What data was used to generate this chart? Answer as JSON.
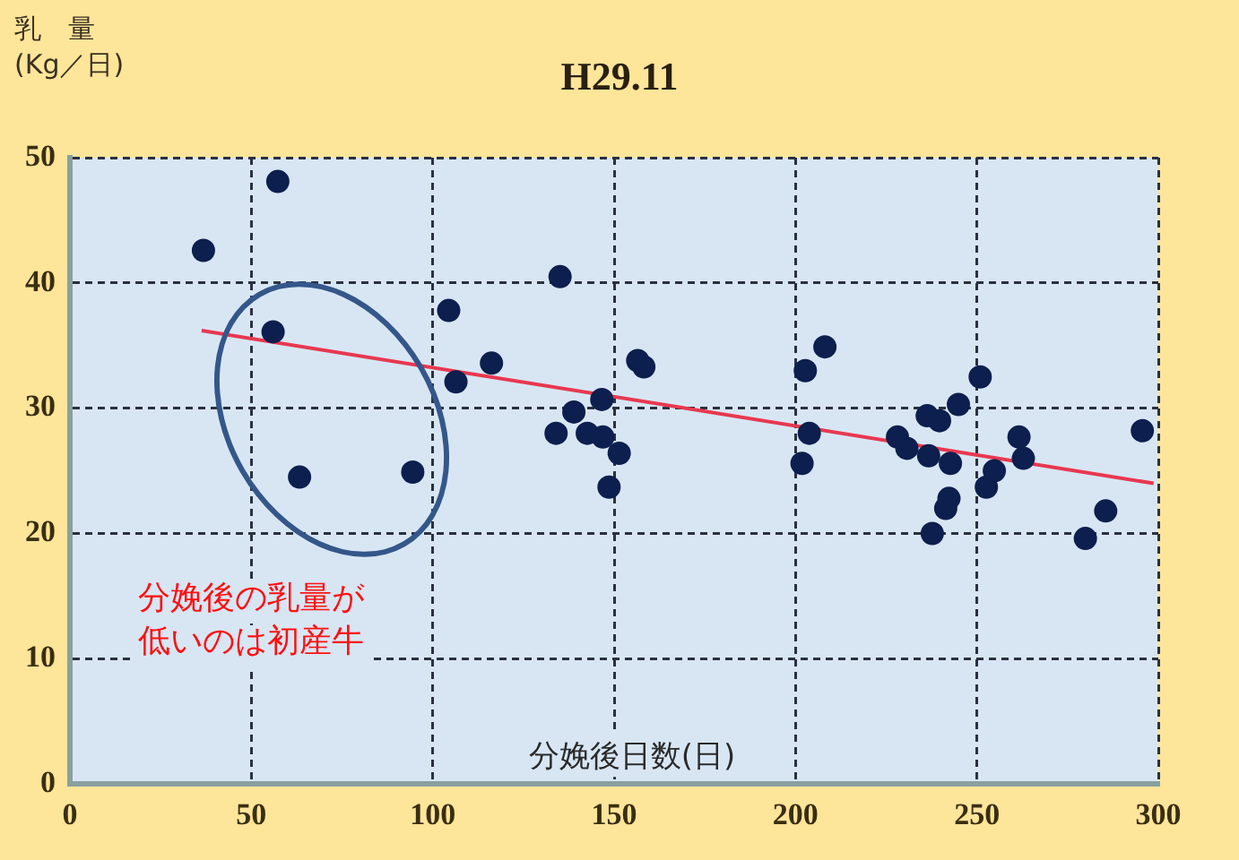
{
  "chart_data": {
    "type": "scatter",
    "title": "H29.11",
    "xlabel": "分娩後日数(日)",
    "ylabel": "乳　量\n(Kg／日)",
    "annotations": [
      "分娩後の乳量が低いのは初産牛"
    ],
    "xlim": [
      0,
      300
    ],
    "xticks": [
      0,
      50,
      100,
      150,
      200,
      250,
      300
    ],
    "ylim": [
      0,
      50
    ],
    "yticks": [
      0,
      10,
      20,
      30,
      40,
      50
    ],
    "grid": true,
    "marker": "circle",
    "series": [
      {
        "type": "scatter",
        "color": "#0d1f4f",
        "x": [
          36.8,
          57.3,
          56,
          63.3,
          94.5,
          104.4,
          106.4,
          116.2,
          135.1,
          134,
          138.9,
          142.6,
          146.6,
          146.9,
          151.4,
          148.6,
          156.5,
          158.2,
          202.7,
          208.1,
          203.8,
          201.8,
          228.1,
          230.7,
          236.3,
          239.7,
          244.9,
          236.7,
          242.7,
          250.9,
          242.3,
          241.4,
          237.7,
          252.6,
          254.8,
          261.6,
          262.8,
          279.9,
          285.5,
          295.6
        ],
        "values": [
          42.6,
          48.1,
          36.1,
          24.5,
          24.9,
          37.8,
          32.1,
          33.6,
          40.5,
          28.0,
          29.7,
          28.0,
          30.7,
          27.7,
          26.4,
          23.7,
          33.8,
          33.3,
          33.0,
          34.9,
          28.0,
          25.6,
          27.7,
          26.8,
          29.4,
          29.0,
          30.3,
          26.2,
          25.6,
          32.5,
          22.8,
          22.0,
          20.0,
          23.7,
          25.0,
          27.7,
          26.0,
          19.6,
          21.8,
          28.2
        ]
      },
      {
        "type": "line",
        "color": "#e8384f",
        "marker": "none",
        "x": [
          36.3,
          298.7
        ],
        "values": [
          36.2,
          24.0
        ]
      }
    ]
  }
}
